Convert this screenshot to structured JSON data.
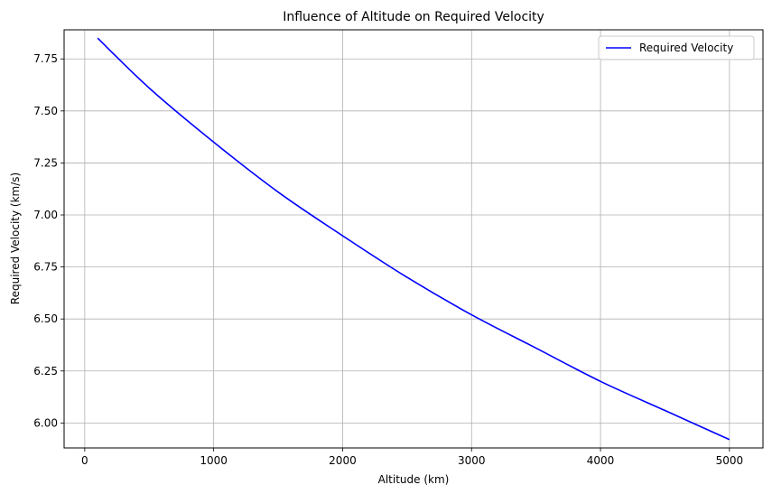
{
  "chart_data": {
    "type": "line",
    "title": "Influence of Altitude on Required Velocity",
    "xlabel": "Altitude (km)",
    "ylabel": "Required Velocity (km/s)",
    "xlim": [
      -160,
      5260
    ],
    "ylim": [
      5.88,
      7.89
    ],
    "xticks": [
      0,
      1000,
      2000,
      3000,
      4000,
      5000
    ],
    "xtick_labels": [
      "0",
      "1000",
      "2000",
      "3000",
      "4000",
      "5000"
    ],
    "yticks": [
      6.0,
      6.25,
      6.5,
      6.75,
      7.0,
      7.25,
      7.5,
      7.75
    ],
    "ytick_labels": [
      "6.00",
      "6.25",
      "6.50",
      "6.75",
      "7.00",
      "7.25",
      "7.50",
      "7.75"
    ],
    "grid": true,
    "legend_position": "top-right",
    "series": [
      {
        "name": "Required Velocity",
        "color": "#0000ff",
        "x": [
          100,
          500,
          1000,
          1500,
          2000,
          2500,
          3000,
          3500,
          4000,
          4500,
          5000
        ],
        "y": [
          7.85,
          7.61,
          7.35,
          7.11,
          6.9,
          6.7,
          6.52,
          6.36,
          6.2,
          6.06,
          5.92
        ]
      }
    ]
  }
}
